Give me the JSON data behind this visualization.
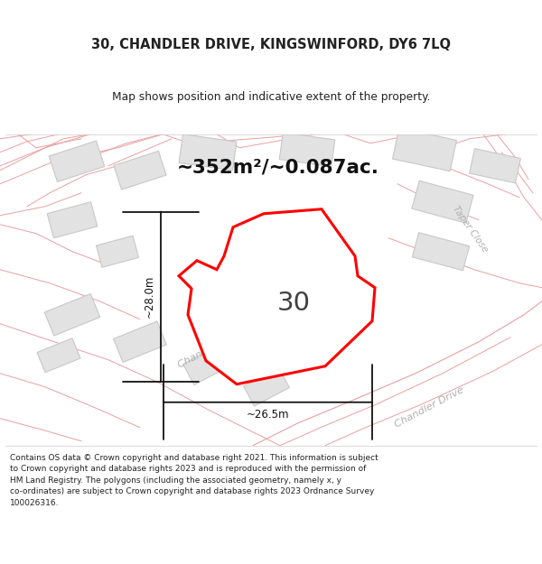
{
  "title": "30, CHANDLER DRIVE, KINGSWINFORD, DY6 7LQ",
  "subtitle": "Map shows position and indicative extent of the property.",
  "area_text": "~352m²/~0.087ac.",
  "label_number": "30",
  "dim_height": "~28.0m",
  "dim_width": "~26.5m",
  "footer_lines": [
    "Contains OS data © Crown copyright and database right 2021. This information is subject",
    "to Crown copyright and database rights 2023 and is reproduced with the permission of",
    "HM Land Registry. The polygons (including the associated geometry, namely x, y",
    "co-ordinates) are subject to Crown copyright and database rights 2023 Ordnance Survey",
    "100026316."
  ],
  "map_bg": "#f8f8f8",
  "gray_fill": "#e2e2e2",
  "gray_edge": "#c8c8c8",
  "pink_line": "#e8a0a0",
  "plot_color": "#ff0000",
  "dim_color": "#111111",
  "road_label_color": "#b0b0b0",
  "number_color": "#404040",
  "title_color": "#222222",
  "footer_color": "#222222"
}
